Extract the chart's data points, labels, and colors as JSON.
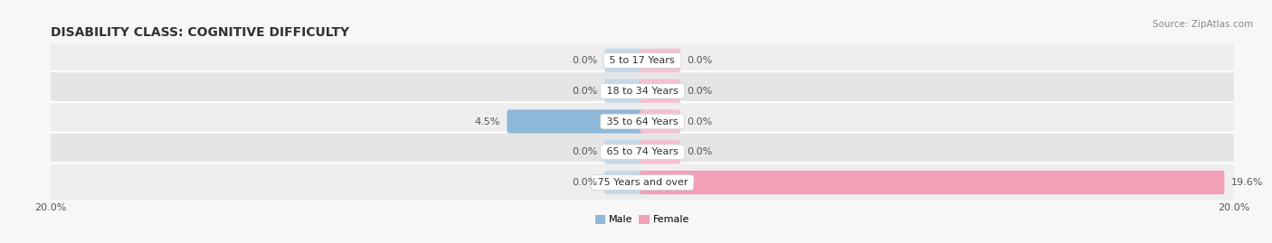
{
  "title": "DISABILITY CLASS: COGNITIVE DIFFICULTY",
  "source": "Source: ZipAtlas.com",
  "categories": [
    "5 to 17 Years",
    "18 to 34 Years",
    "35 to 64 Years",
    "65 to 74 Years",
    "75 Years and over"
  ],
  "male_values": [
    0.0,
    0.0,
    4.5,
    0.0,
    0.0
  ],
  "female_values": [
    0.0,
    0.0,
    0.0,
    0.0,
    19.6
  ],
  "male_color": "#8fb8d8",
  "female_color": "#f2a0b8",
  "row_light_color": "#eeeeef",
  "row_dark_color": "#e5e5e8",
  "bg_color": "#f7f7f7",
  "xlim": 20.0,
  "stub_size": 1.2,
  "bar_height": 0.62,
  "title_fontsize": 10,
  "label_fontsize": 8,
  "tick_fontsize": 8,
  "category_fontsize": 8,
  "source_fontsize": 7.5
}
